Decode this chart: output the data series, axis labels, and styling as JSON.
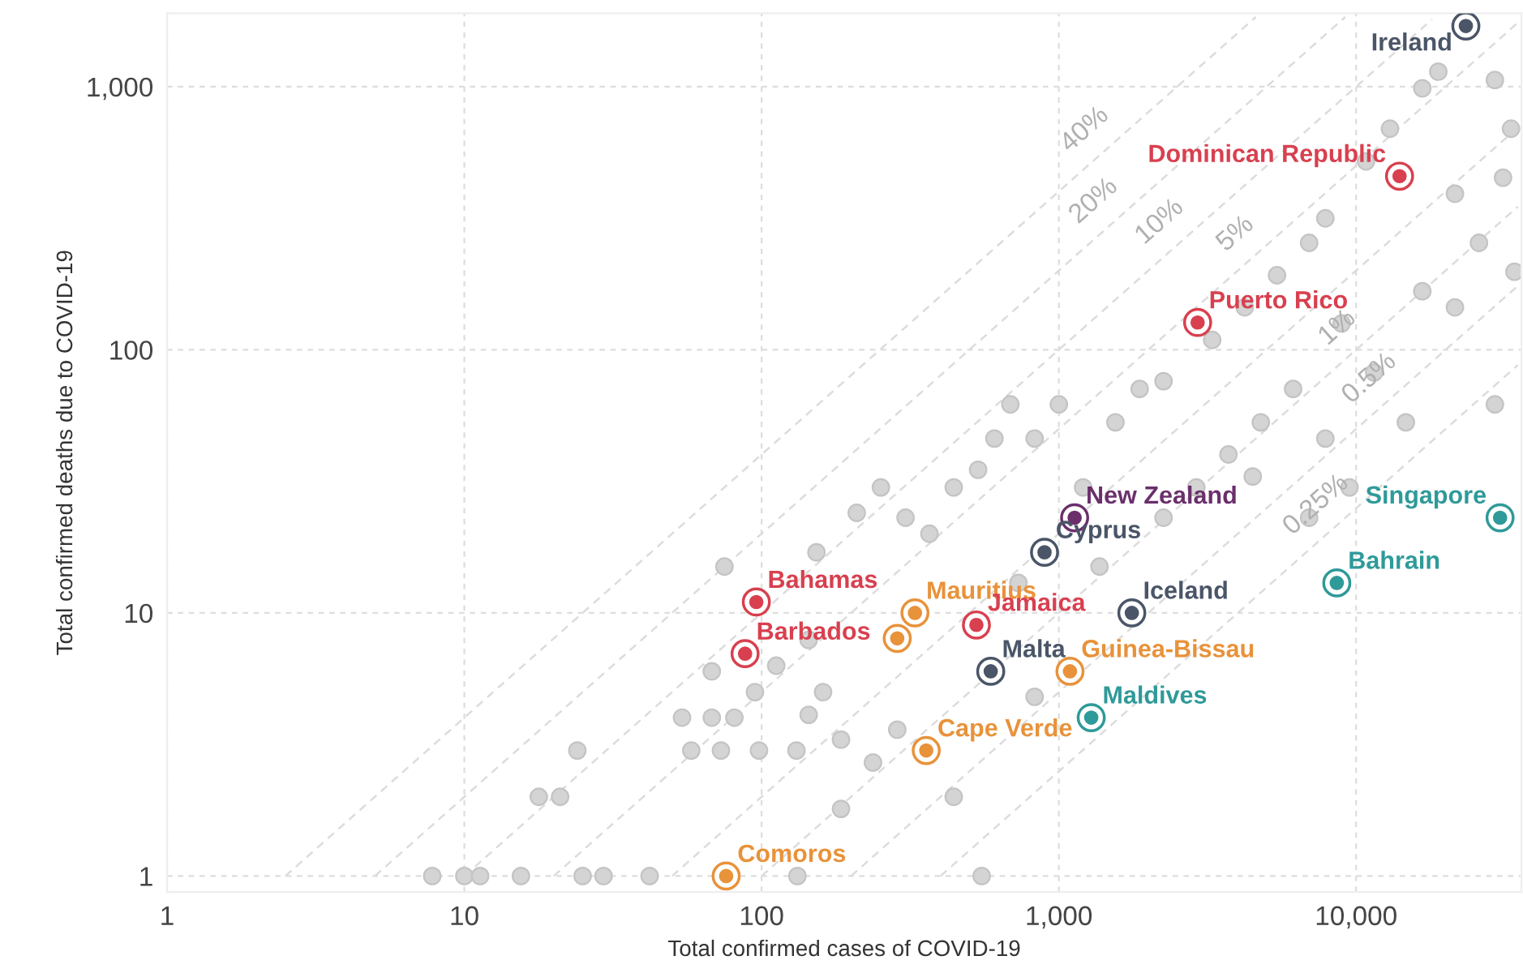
{
  "chart_data": {
    "type": "scatter",
    "xlabel": "Total confirmed cases of COVID-19",
    "ylabel": "Total confirmed deaths due to COVID-19",
    "log": "xy",
    "xlim": [
      1,
      36000
    ],
    "ylim": [
      0.87,
      1900
    ],
    "xticks": [
      1,
      10,
      100,
      {
        "value": 1000,
        "label": "1,000"
      },
      {
        "value": 10000,
        "label": "10,000"
      }
    ],
    "yticks": [
      1,
      10,
      100,
      {
        "value": 1000,
        "label": "1,000"
      }
    ],
    "grid": true,
    "legend": false,
    "series": [
      {
        "type": "line",
        "color": "#dcdcdc",
        "line_style": "dashed",
        "x": [
          2.5,
          4600
        ],
        "values": [
          1,
          1840
        ]
      },
      {
        "type": "line",
        "color": "#dcdcdc",
        "line_style": "dashed",
        "x": [
          5,
          9200
        ],
        "values": [
          1,
          1840
        ]
      },
      {
        "type": "line",
        "color": "#dcdcdc",
        "line_style": "dashed",
        "x": [
          10,
          18000
        ],
        "values": [
          1,
          1800
        ]
      },
      {
        "type": "line",
        "color": "#dcdcdc",
        "line_style": "dashed",
        "x": [
          20,
          35000
        ],
        "values": [
          1,
          1750
        ]
      },
      {
        "type": "line",
        "color": "#dcdcdc",
        "line_style": "dashed",
        "x": [
          50,
          35000
        ],
        "values": [
          1,
          700
        ]
      },
      {
        "type": "line",
        "color": "#dcdcdc",
        "line_style": "dashed",
        "x": [
          100,
          35000
        ],
        "values": [
          1,
          350
        ]
      },
      {
        "type": "line",
        "color": "#dcdcdc",
        "line_style": "dashed",
        "x": [
          200,
          35000
        ],
        "values": [
          1,
          175
        ]
      },
      {
        "type": "line",
        "color": "#dcdcdc",
        "line_style": "dashed",
        "x": [
          400,
          35000
        ],
        "values": [
          1,
          87.5
        ]
      },
      {
        "marker": "circle",
        "color": "#d4d4d4",
        "x": [
          153,
          209,
          252,
          305,
          367,
          443,
          535,
          607,
          687,
          829,
          1000,
          1207,
          1550,
          1870,
          2250,
          3280,
          4220,
          5420,
          6950,
          7880,
          10800,
          13000,
          16700,
          18900,
          29300,
          33200,
          31200,
          25900,
          21500,
          16700,
          8940,
          6140,
          4780,
          3720,
          2900,
          2250,
          1370,
          731,
          286,
          237,
          185,
          144,
          185,
          443,
          829,
          4490,
          7880,
          11500,
          14700,
          21500,
          29300,
          34100,
          6950,
          9500,
          144,
          112,
          7.8,
          10,
          11.3,
          15.5,
          25,
          29.4,
          42,
          132,
          550,
          17.8,
          21,
          24,
          58,
          73,
          98,
          131,
          54,
          68,
          81,
          68,
          95,
          161,
          75
        ],
        "values": [
          17,
          24,
          30,
          23,
          20,
          30,
          35,
          46,
          62,
          46,
          62,
          30,
          53,
          71,
          76,
          109,
          145,
          192,
          255,
          316,
          520,
          692,
          986,
          1140,
          1060,
          692,
          451,
          255,
          145,
          167,
          126,
          71,
          53,
          40,
          30,
          23,
          15,
          13,
          3.6,
          2.7,
          3.3,
          4.1,
          1.8,
          2.0,
          4.8,
          33,
          46,
          82,
          53,
          392,
          62,
          198,
          23,
          30,
          7.9,
          6.3,
          1,
          1,
          1,
          1,
          1,
          1,
          1,
          1,
          1,
          2,
          2,
          3,
          3,
          3,
          3,
          3,
          4,
          4,
          4,
          6,
          5,
          5,
          15
        ]
      },
      {
        "marker": "circle",
        "color": "#d8404f",
        "x": [
          14000,
          2930,
          96,
          88,
          528
        ],
        "values": [
          457,
          127,
          11,
          7,
          9
        ]
      },
      {
        "marker": "circle",
        "color": "#e8923a",
        "x": [
          328,
          286,
          1090,
          358,
          76
        ],
        "values": [
          10,
          8,
          6,
          3,
          1
        ]
      },
      {
        "marker": "circle",
        "color": "#4a5568",
        "x": [
          23400,
          895,
          1760,
          590
        ],
        "values": [
          1700,
          17,
          10,
          6
        ]
      },
      {
        "marker": "circle",
        "color": "#2e9a99",
        "x": [
          30500,
          8610,
          1285
        ],
        "values": [
          23,
          13,
          4
        ]
      },
      {
        "marker": "circle",
        "color": "#6b2f6b",
        "x": [
          1130
        ],
        "values": [
          23
        ]
      }
    ],
    "annotations": [
      {
        "text": "40%",
        "x": 1400,
        "y": 560
      },
      {
        "text": "20%",
        "x": 1500,
        "y": 300
      },
      {
        "text": "10%",
        "x": 2500,
        "y": 250
      },
      {
        "text": "5%",
        "x": 4500,
        "y": 225
      },
      {
        "text": "1%",
        "x": 9900,
        "y": 99
      },
      {
        "text": "0.5%",
        "x": 12700,
        "y": 63.5
      },
      {
        "text": "0.25%",
        "x": 8400,
        "y": 21
      },
      {
        "text": "Ireland",
        "x": 23400,
        "y": 1700
      },
      {
        "text": "Dominican Republic",
        "x": 14000,
        "y": 457
      },
      {
        "text": "Puerto Rico",
        "x": 2930,
        "y": 127
      },
      {
        "text": "New Zealand",
        "x": 1130,
        "y": 23
      },
      {
        "text": "Cyprus",
        "x": 895,
        "y": 17
      },
      {
        "text": "Bahamas",
        "x": 96,
        "y": 11
      },
      {
        "text": "Mauritius",
        "x": 328,
        "y": 10
      },
      {
        "text": "Barbados",
        "x": 88,
        "y": 7
      },
      {
        "text": "Jamaica",
        "x": 528,
        "y": 9
      },
      {
        "text": "Iceland",
        "x": 1760,
        "y": 10
      },
      {
        "text": "Malta",
        "x": 590,
        "y": 6
      },
      {
        "text": "Guinea-Bissau",
        "x": 1090,
        "y": 6
      },
      {
        "text": "Maldives",
        "x": 1285,
        "y": 4
      },
      {
        "text": "Cape Verde",
        "x": 358,
        "y": 3
      },
      {
        "text": "Comoros",
        "x": 76,
        "y": 1
      },
      {
        "text": "Singapore",
        "x": 30500,
        "y": 23
      },
      {
        "text": "Bahrain",
        "x": 8610,
        "y": 13
      }
    ]
  }
}
